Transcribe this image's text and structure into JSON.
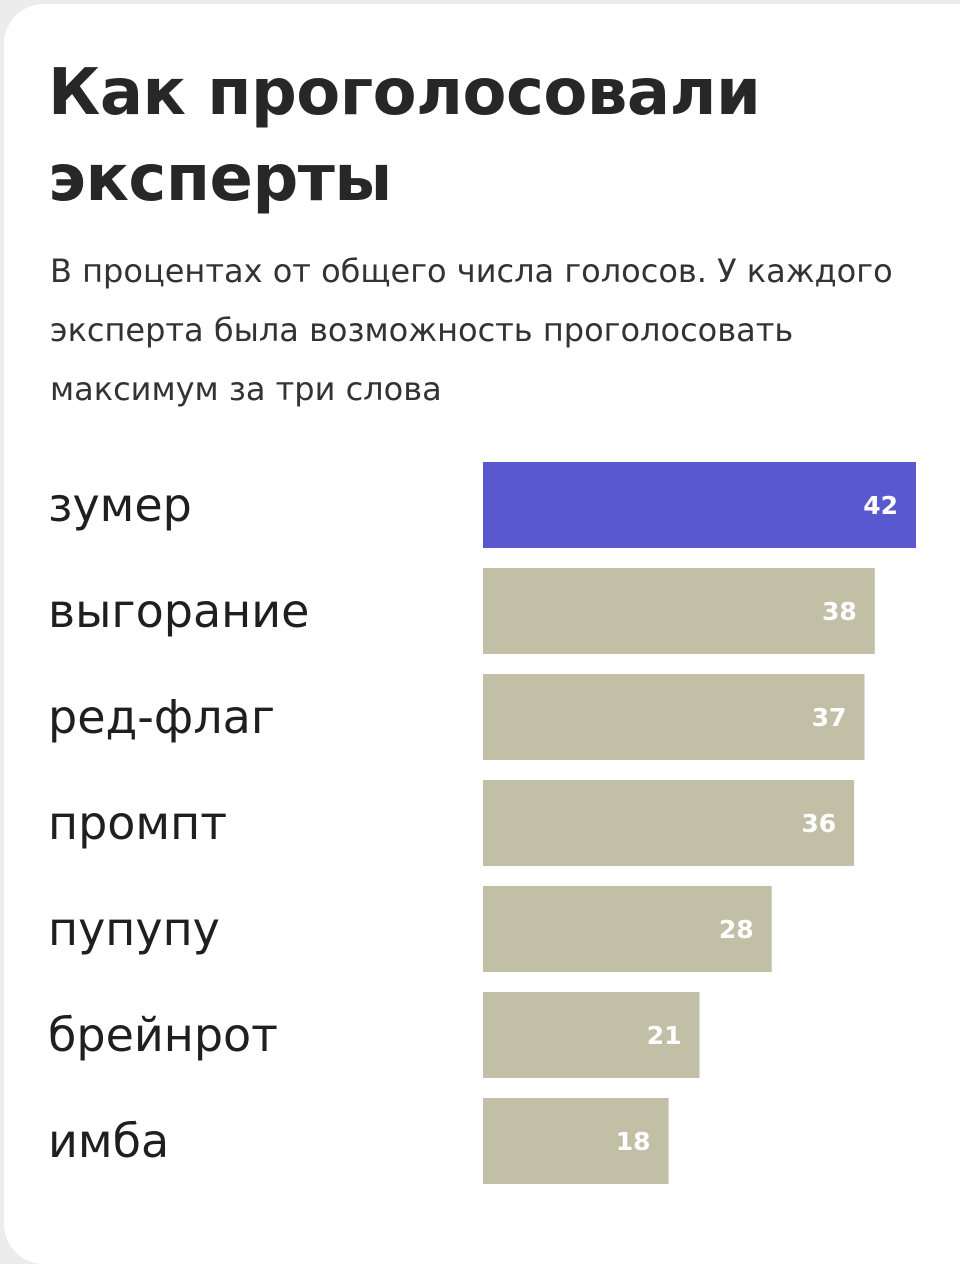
{
  "header": {
    "title": "Как проголосовали эксперты",
    "subtitle": "В процентах от общего числа голосов. У каждого эксперта была возможность проголосовать максимум за три слова"
  },
  "colors": {
    "highlight": "#5a58cf",
    "bar": "#c2bfa7",
    "value_text": "#ffffff",
    "label_text": "#1f1f1f"
  },
  "chart_data": {
    "type": "bar",
    "orientation": "horizontal",
    "title": "Как проголосовали эксперты",
    "subtitle": "В процентах от общего числа голосов. У каждого эксперта была возможность проголосовать максимум за три слова",
    "categories": [
      "зумер",
      "выгорание",
      "ред-флаг",
      "промпт",
      "пупупу",
      "брейнрот",
      "имба"
    ],
    "values": [
      42,
      38,
      37,
      36,
      28,
      21,
      18
    ],
    "data_labels": [
      "42",
      "38",
      "37",
      "36",
      "28",
      "21",
      "18"
    ],
    "highlighted_category": "зумер",
    "xlim": [
      0,
      42
    ],
    "grid": false,
    "legend": "none"
  }
}
